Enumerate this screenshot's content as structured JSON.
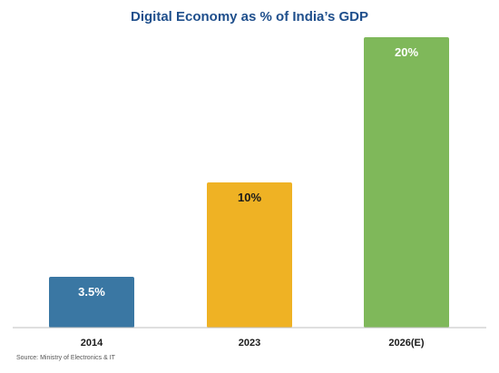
{
  "chart_data": {
    "type": "bar",
    "title": "Digital Economy as % of India’s GDP",
    "categories": [
      "2014",
      "2023",
      "2026(E)"
    ],
    "values": [
      3.5,
      10,
      20
    ],
    "data_labels": [
      "3.5%",
      "10%",
      "20%"
    ],
    "bar_colors": [
      "#3a77a3",
      "#efb224",
      "#7fb85a"
    ],
    "label_colors": [
      "#ffffff",
      "#1a1a1a",
      "#ffffff"
    ],
    "ylim": [
      0,
      20
    ],
    "grid": false,
    "legend": "none"
  },
  "source": "Source: Ministry of Electronics & IT",
  "colors": {
    "title": "#1f4f8c",
    "axis": "#bfbfbf"
  }
}
